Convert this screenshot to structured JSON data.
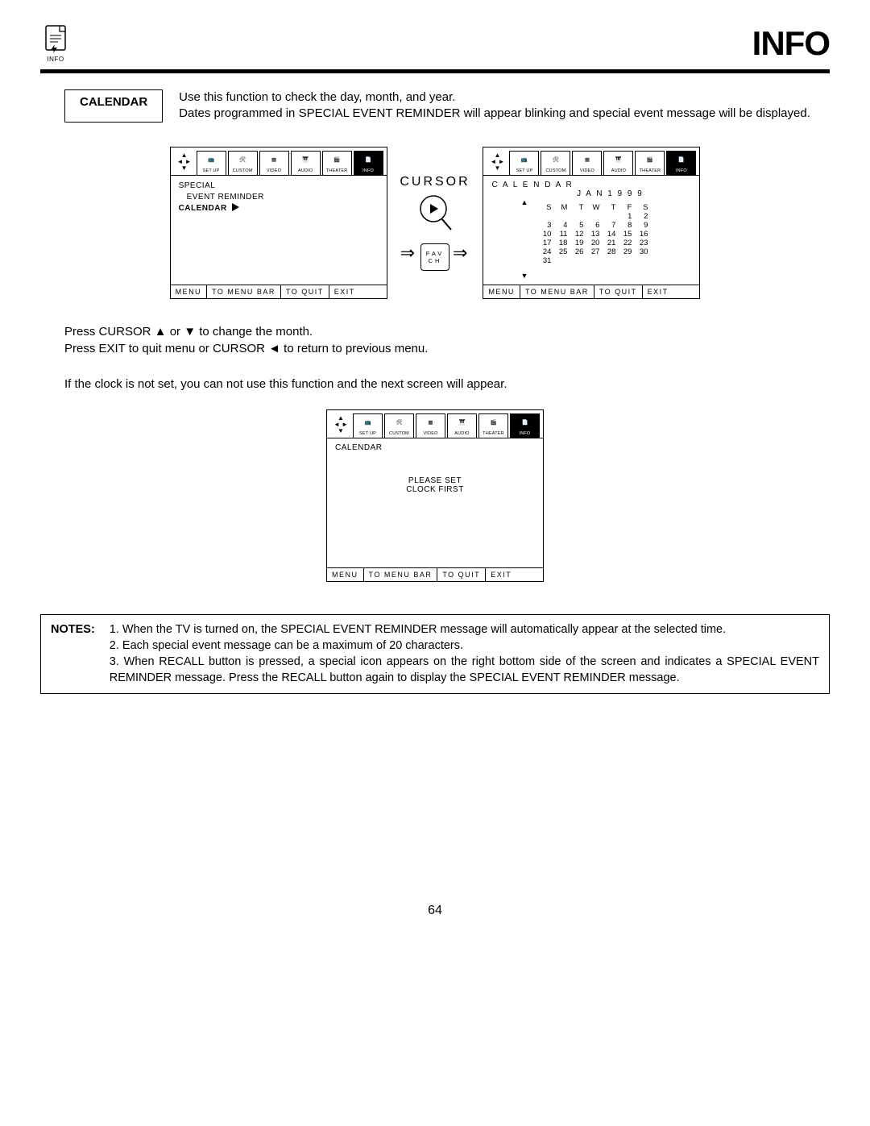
{
  "header": {
    "icon_label": "INFO",
    "title": "INFO"
  },
  "section": {
    "label": "CALENDAR",
    "text": "Use this function to check the day, month, and year.\nDates programmed in SPECIAL EVENT REMINDER will appear blinking and special event message will be displayed."
  },
  "tabs": [
    "SET UP",
    "CUSTOM",
    "VIDEO",
    "AUDIO",
    "THEATER",
    "INFO"
  ],
  "osd1": {
    "line1": "SPECIAL",
    "line2": "EVENT REMINDER",
    "line3": "CALENDAR",
    "footer": {
      "menu": "MENU",
      "bar": "TO MENU BAR",
      "quit": "TO QUIT",
      "exit": "EXIT"
    }
  },
  "cursor_block": {
    "label": "CURSOR",
    "button_l1": "FAV",
    "button_l2": "CH"
  },
  "osd2": {
    "heading": "C A L E N D A R",
    "month_year": "J A N   1 9 9 9",
    "dow": [
      "S",
      "M",
      "T",
      "W",
      "T",
      "F",
      "S"
    ],
    "weeks": [
      [
        "",
        "",
        "",
        "",
        "",
        "1",
        "2"
      ],
      [
        "3",
        "4",
        "5",
        "6",
        "7",
        "8",
        "9"
      ],
      [
        "10",
        "11",
        "12",
        "13",
        "14",
        "15",
        "16"
      ],
      [
        "17",
        "18",
        "19",
        "20",
        "21",
        "22",
        "23"
      ],
      [
        "24",
        "25",
        "26",
        "27",
        "28",
        "29",
        "30"
      ],
      [
        "31",
        "",
        "",
        "",
        "",
        "",
        ""
      ]
    ],
    "footer": {
      "menu": "MENU",
      "bar": "TO MENU BAR",
      "quit": "TO QUIT",
      "exit": "EXIT"
    }
  },
  "mid_text": {
    "l1": "Press CURSOR ▲ or ▼ to change the month.",
    "l2": "Press EXIT to quit menu or CURSOR ◄ to return to previous menu.",
    "l3": "If the clock is not set, you can not use this function and the next screen will appear."
  },
  "osd3": {
    "heading": "CALENDAR",
    "msg1": "PLEASE SET",
    "msg2": "CLOCK FIRST",
    "footer": {
      "menu": "MENU",
      "bar": "TO MENU BAR",
      "quit": "TO QUIT",
      "exit": "EXIT"
    }
  },
  "notes": {
    "label": "NOTES:",
    "items": [
      "1. When the TV is turned on, the SPECIAL EVENT REMINDER message will automatically appear at the selected time.",
      "2. Each special event message can be a maximum of 20 characters.",
      "3. When RECALL button is pressed, a special icon appears on the right bottom side of the screen and indicates a SPECIAL EVENT REMINDER message. Press the RECALL button again to display the SPECIAL EVENT REMINDER message."
    ]
  },
  "page_number": "64",
  "colors": {
    "fg": "#000000",
    "bg": "#ffffff"
  }
}
